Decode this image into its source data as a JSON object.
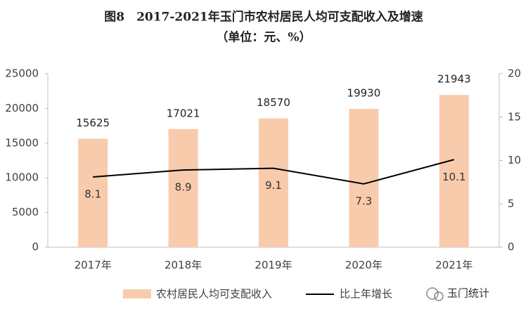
{
  "chart_data": {
    "type": "bar",
    "title": "图8　2017-2021年玉门市农村居民人均可支配收入及增速",
    "subtitle": "（单位：元、%）",
    "categories": [
      "2017年",
      "2018年",
      "2019年",
      "2020年",
      "2021年"
    ],
    "series": [
      {
        "name": "农村居民人均可支配收入",
        "type": "bar",
        "color": "#f8cbad",
        "values": [
          15625,
          17021,
          18570,
          19930,
          21943
        ]
      },
      {
        "name": "比上年增长",
        "type": "line",
        "axis": "y2",
        "color": "#000000",
        "values": [
          8.1,
          8.9,
          9.1,
          7.3,
          10.1
        ]
      }
    ],
    "ylim": [
      0,
      25000
    ],
    "yticks": [
      0,
      5000,
      10000,
      15000,
      20000,
      25000
    ],
    "y2lim": [
      0,
      20
    ],
    "y2ticks": [
      0,
      5,
      10,
      15,
      20
    ],
    "grid": false,
    "legend": "bottom",
    "watermark": "玉门统计"
  }
}
